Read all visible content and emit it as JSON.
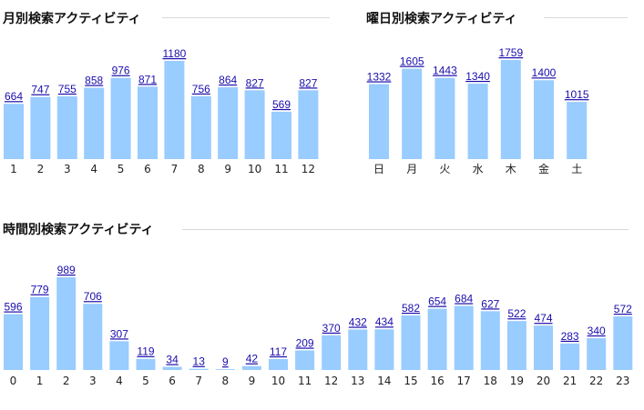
{
  "chart_data": [
    {
      "type": "bar",
      "title": "月別検索アクティビティ",
      "categories": [
        "1",
        "2",
        "3",
        "4",
        "5",
        "6",
        "7",
        "8",
        "9",
        "10",
        "11",
        "12"
      ],
      "values": [
        664,
        747,
        755,
        858,
        976,
        871,
        1180,
        756,
        864,
        827,
        569,
        827
      ],
      "ylim": [
        0,
        1180
      ],
      "grid": false,
      "bar_color": "#99ccff"
    },
    {
      "type": "bar",
      "title": "曜日別検索アクティビティ",
      "categories": [
        "日",
        "月",
        "火",
        "水",
        "木",
        "金",
        "土"
      ],
      "values": [
        1332,
        1605,
        1443,
        1340,
        1759,
        1400,
        1015
      ],
      "ylim": [
        0,
        1759
      ],
      "grid": false,
      "bar_color": "#99ccff"
    },
    {
      "type": "bar",
      "title": "時間別検索アクティビティ",
      "categories": [
        "0",
        "1",
        "2",
        "3",
        "4",
        "5",
        "6",
        "7",
        "8",
        "9",
        "10",
        "11",
        "12",
        "13",
        "14",
        "15",
        "16",
        "17",
        "18",
        "19",
        "20",
        "21",
        "22",
        "23"
      ],
      "values": [
        596,
        779,
        989,
        706,
        307,
        119,
        34,
        13,
        9,
        42,
        117,
        209,
        370,
        432,
        434,
        582,
        654,
        684,
        627,
        522,
        474,
        283,
        340,
        572
      ],
      "ylim": [
        0,
        989
      ],
      "grid": false,
      "bar_color": "#99ccff"
    }
  ],
  "colors": {
    "bar": "#99ccff",
    "value_link": "#1a0dab",
    "rule": "#d8d8d8"
  }
}
